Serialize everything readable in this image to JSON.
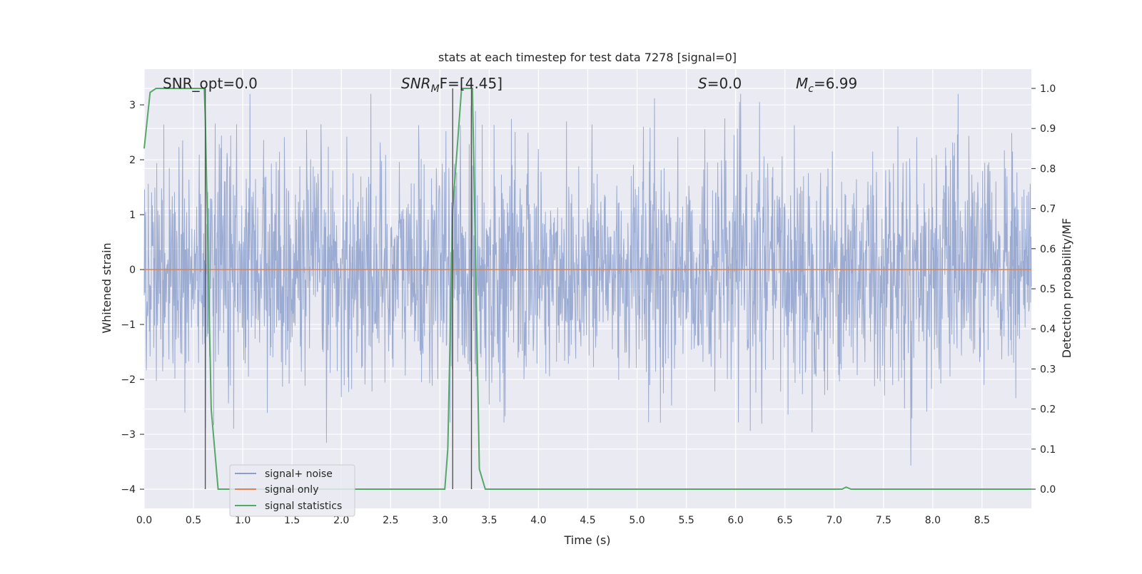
{
  "chart_data": {
    "type": "line",
    "title": "stats at each timestep for test data 7278 [signal=0]",
    "xlabel": "Time (s)",
    "ylabel": "Whitened strain",
    "y2label": "Detection probability/MF",
    "xlim": [
      0.0,
      9.0
    ],
    "ylim": [
      -4.35,
      3.65
    ],
    "y2lim": [
      -0.048,
      1.048
    ],
    "xticks": [
      "0.0",
      "0.5",
      "1.0",
      "1.5",
      "2.0",
      "2.5",
      "3.0",
      "3.5",
      "4.0",
      "4.5",
      "5.0",
      "5.5",
      "6.0",
      "6.5",
      "7.0",
      "7.5",
      "8.0",
      "8.5"
    ],
    "yticks": [
      "3",
      "2",
      "1",
      "0",
      "−1",
      "−2",
      "−3",
      "−4"
    ],
    "y2ticks": [
      "1.0",
      "0.9",
      "0.8",
      "0.7",
      "0.6",
      "0.5",
      "0.4",
      "0.3",
      "0.2",
      "0.1",
      "0.0"
    ],
    "grid": true,
    "legend_position": "lower-left",
    "annotations": {
      "snr_opt": "SNR_opt=0.0",
      "snr_mf_main": "SNR",
      "snr_mf_sub": "M",
      "snr_mf_rest": "F=[4.45]",
      "s_main": "S",
      "s_rest": "=0.0",
      "mc_main": "M",
      "mc_sub": "c",
      "mc_rest": "=6.99"
    },
    "series": [
      {
        "name": "signal+ noise",
        "color": "#8da0cb",
        "note": "whitened Gaussian noise, approx. mean 0, spread ~1, range about -3.9 to 3.2 across 0–9 s",
        "values_summary": {
          "min": -3.9,
          "max": 3.2
        }
      },
      {
        "name": "signal only",
        "color": "#dd8452",
        "x": [
          0.0,
          9.0
        ],
        "y": [
          0.0,
          0.0
        ]
      },
      {
        "name": "signal statistics",
        "color": "#55a868",
        "axis": "right",
        "x": [
          0.0,
          0.06,
          0.12,
          0.2,
          0.3,
          0.4,
          0.5,
          0.61,
          0.62,
          0.68,
          0.75,
          1.0,
          2.0,
          2.6,
          3.05,
          3.08,
          3.13,
          3.22,
          3.3,
          3.33,
          3.4,
          3.46,
          3.6,
          4.0,
          5.0,
          6.0,
          7.0,
          7.08,
          7.12,
          7.17,
          7.3,
          8.0,
          9.0
        ],
        "y": [
          0.85,
          0.99,
          1.0,
          1.0,
          1.0,
          1.0,
          1.0,
          1.0,
          0.93,
          0.2,
          0.0,
          0.0,
          0.0,
          0.0,
          0.0,
          0.1,
          0.7,
          1.0,
          1.0,
          1.0,
          0.05,
          0.0,
          0.0,
          0.0,
          0.0,
          0.0,
          0.0,
          0.0,
          0.005,
          0.0,
          0.0,
          0.0,
          0.0
        ]
      }
    ],
    "vertical_markers_seconds": [
      0.62,
      3.13,
      3.32
    ]
  },
  "colors": {
    "plot_background": "#eaeaf2",
    "grid": "#ffffff",
    "marker_line": "#555555"
  }
}
